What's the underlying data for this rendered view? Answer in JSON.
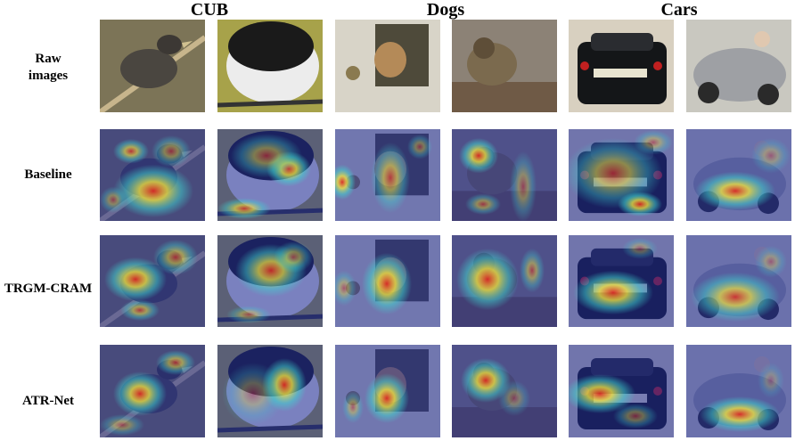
{
  "headers": [
    "CUB",
    "Dogs",
    "Cars"
  ],
  "rows": [
    {
      "label_line1": "Raw",
      "label_line2": "images",
      "kind": "raw"
    },
    {
      "label_line1": "Baseline",
      "label_line2": "",
      "kind": "baseline"
    },
    {
      "label_line1": "TRGM-CRAM",
      "label_line2": "",
      "kind": "trgm"
    },
    {
      "label_line1": "ATR-Net",
      "label_line2": "",
      "kind": "atr"
    }
  ],
  "images": [
    {
      "subject": "bird-on-branch",
      "background": "#8a7f63"
    },
    {
      "subject": "black-white-bird",
      "background": "#a7a24a"
    },
    {
      "subject": "dog-at-door",
      "background": "#b9b6ac"
    },
    {
      "subject": "dog-on-log",
      "background": "#9a8f80"
    },
    {
      "subject": "black-sedan",
      "background": "#a59d8e"
    },
    {
      "subject": "silver-convertible",
      "background": "#a8a7a0"
    }
  ],
  "heat_colors": [
    "#1d2a9a",
    "#3fd7d0",
    "#f6e83c",
    "#e2291f"
  ]
}
